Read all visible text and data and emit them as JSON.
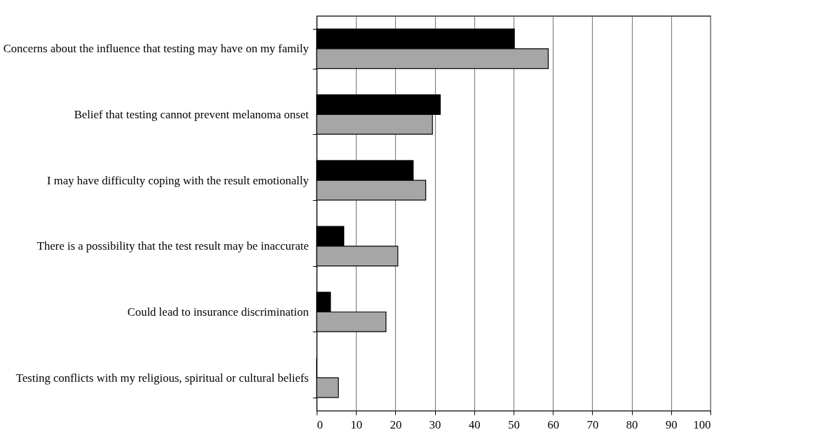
{
  "chart_data": {
    "type": "bar",
    "orientation": "horizontal",
    "categories": [
      "Concerns about the influence that testing may have on my family",
      "Belief that testing cannot prevent melanoma onset",
      "I may have difficulty coping with the result emotionally",
      "There is a possibility that the test result may be inaccurate",
      "Could lead to insurance discrimination",
      "Testing conflicts with my religious, spiritual or cultural beliefs"
    ],
    "series": [
      {
        "color": "#000000",
        "values": [
          50.2,
          31.4,
          24.5,
          6.9,
          3.5,
          0
        ]
      },
      {
        "color": "#a6a6a6",
        "values": [
          58.8,
          29.4,
          27.7,
          20.6,
          17.6,
          5.5
        ]
      }
    ],
    "xlim": [
      0,
      100
    ],
    "xticks": [
      0,
      10,
      20,
      30,
      40,
      50,
      60,
      70,
      80,
      90,
      100
    ],
    "grid": "x",
    "legend": false
  }
}
